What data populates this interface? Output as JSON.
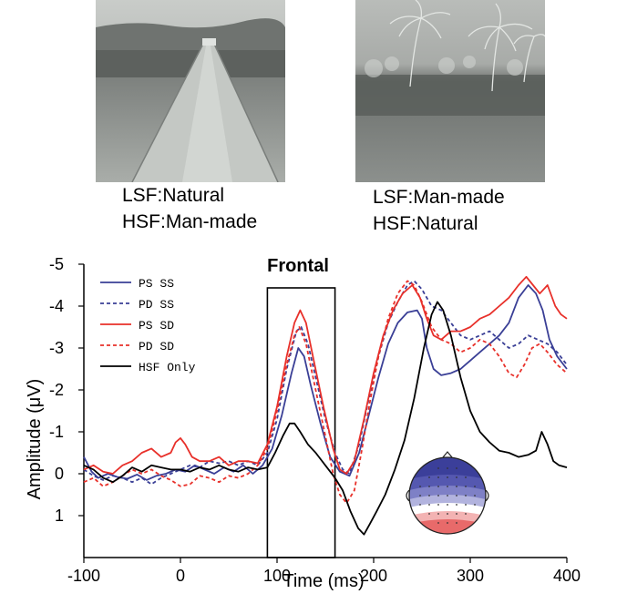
{
  "images": {
    "left": {
      "scene": "road",
      "caption_lines": [
        "LSF:Natural",
        "HSF:Man-made"
      ]
    },
    "right": {
      "scene": "palm-trees",
      "caption_lines": [
        "LSF:Man-made",
        "HSF:Natural"
      ]
    }
  },
  "chart_data": {
    "type": "line",
    "title": "Frontal",
    "xlabel": "Time (ms)",
    "ylabel": "Amplitude (μV)",
    "xlim": [
      -100,
      400
    ],
    "ylim": [
      -5,
      2
    ],
    "y_inverted": true,
    "x_ticks": [
      -100,
      0,
      100,
      200,
      300,
      400
    ],
    "x_tick_labels": [
      "-100",
      "0",
      "100",
      "200",
      "300",
      "400"
    ],
    "y_ticks": [
      -5,
      -4,
      -3,
      -2,
      -1,
      0,
      1
    ],
    "y_tick_labels": [
      "-5",
      "-4",
      "-3",
      "-2",
      "-1",
      "0",
      "1"
    ],
    "grid": false,
    "legend_position": "top-left",
    "highlight_window": {
      "x0": 90,
      "x1": 160
    },
    "inset": "scalp-topography-map",
    "series": [
      {
        "name": "PS SS",
        "color": "#3a3f96",
        "dash": "solid",
        "points": [
          [
            -100,
            -0.4
          ],
          [
            -92,
            -0.05
          ],
          [
            -85,
            0.1
          ],
          [
            -75,
            0.0
          ],
          [
            -65,
            0.08
          ],
          [
            -55,
            0.12
          ],
          [
            -45,
            0.02
          ],
          [
            -35,
            0.15
          ],
          [
            -25,
            0.05
          ],
          [
            -15,
            0.0
          ],
          [
            -5,
            -0.1
          ],
          [
            5,
            -0.05
          ],
          [
            15,
            -0.2
          ],
          [
            25,
            -0.1
          ],
          [
            35,
            0.0
          ],
          [
            45,
            -0.15
          ],
          [
            55,
            -0.05
          ],
          [
            65,
            -0.2
          ],
          [
            75,
            0.0
          ],
          [
            85,
            -0.2
          ],
          [
            95,
            -0.6
          ],
          [
            105,
            -1.4
          ],
          [
            115,
            -2.4
          ],
          [
            122,
            -3.0
          ],
          [
            128,
            -2.8
          ],
          [
            135,
            -2.1
          ],
          [
            145,
            -1.2
          ],
          [
            155,
            -0.4
          ],
          [
            165,
            -0.05
          ],
          [
            175,
            0.05
          ],
          [
            185,
            -0.5
          ],
          [
            195,
            -1.4
          ],
          [
            205,
            -2.3
          ],
          [
            215,
            -3.1
          ],
          [
            225,
            -3.6
          ],
          [
            235,
            -3.85
          ],
          [
            245,
            -3.9
          ],
          [
            250,
            -3.7
          ],
          [
            255,
            -3.0
          ],
          [
            262,
            -2.5
          ],
          [
            270,
            -2.35
          ],
          [
            280,
            -2.4
          ],
          [
            290,
            -2.5
          ],
          [
            300,
            -2.7
          ],
          [
            310,
            -2.9
          ],
          [
            320,
            -3.1
          ],
          [
            330,
            -3.3
          ],
          [
            340,
            -3.6
          ],
          [
            350,
            -4.2
          ],
          [
            360,
            -4.5
          ],
          [
            368,
            -4.3
          ],
          [
            375,
            -3.9
          ],
          [
            382,
            -3.2
          ],
          [
            390,
            -2.8
          ],
          [
            400,
            -2.5
          ]
        ]
      },
      {
        "name": "PD SS",
        "color": "#3a3f96",
        "dash": "dashed",
        "points": [
          [
            -100,
            -0.1
          ],
          [
            -90,
            0.05
          ],
          [
            -80,
            0.15
          ],
          [
            -70,
            0.05
          ],
          [
            -60,
            0.1
          ],
          [
            -50,
            0.2
          ],
          [
            -40,
            0.1
          ],
          [
            -30,
            0.25
          ],
          [
            -20,
            0.1
          ],
          [
            -10,
            0.0
          ],
          [
            0,
            -0.1
          ],
          [
            10,
            -0.2
          ],
          [
            20,
            -0.15
          ],
          [
            30,
            -0.3
          ],
          [
            40,
            -0.25
          ],
          [
            50,
            -0.3
          ],
          [
            60,
            -0.2
          ],
          [
            70,
            -0.3
          ],
          [
            80,
            -0.2
          ],
          [
            90,
            -0.5
          ],
          [
            100,
            -1.3
          ],
          [
            110,
            -2.5
          ],
          [
            120,
            -3.4
          ],
          [
            125,
            -3.5
          ],
          [
            132,
            -3.1
          ],
          [
            140,
            -2.3
          ],
          [
            150,
            -1.3
          ],
          [
            160,
            -0.5
          ],
          [
            168,
            -0.1
          ],
          [
            175,
            0.0
          ],
          [
            185,
            -0.7
          ],
          [
            195,
            -1.8
          ],
          [
            205,
            -2.8
          ],
          [
            215,
            -3.6
          ],
          [
            225,
            -4.1
          ],
          [
            235,
            -4.5
          ],
          [
            242,
            -4.6
          ],
          [
            250,
            -4.4
          ],
          [
            260,
            -4.0
          ],
          [
            270,
            -3.9
          ],
          [
            280,
            -3.6
          ],
          [
            290,
            -3.3
          ],
          [
            300,
            -3.2
          ],
          [
            310,
            -3.3
          ],
          [
            320,
            -3.4
          ],
          [
            330,
            -3.2
          ],
          [
            340,
            -3.0
          ],
          [
            350,
            -3.1
          ],
          [
            360,
            -3.3
          ],
          [
            370,
            -3.2
          ],
          [
            380,
            -3.1
          ],
          [
            390,
            -2.9
          ],
          [
            400,
            -2.6
          ]
        ]
      },
      {
        "name": "PS SD",
        "color": "#e8302a",
        "dash": "solid",
        "points": [
          [
            -100,
            -0.1
          ],
          [
            -90,
            -0.2
          ],
          [
            -80,
            -0.05
          ],
          [
            -70,
            0.0
          ],
          [
            -60,
            -0.2
          ],
          [
            -50,
            -0.3
          ],
          [
            -40,
            -0.5
          ],
          [
            -30,
            -0.6
          ],
          [
            -20,
            -0.4
          ],
          [
            -10,
            -0.5
          ],
          [
            -5,
            -0.75
          ],
          [
            0,
            -0.85
          ],
          [
            5,
            -0.7
          ],
          [
            12,
            -0.4
          ],
          [
            20,
            -0.3
          ],
          [
            30,
            -0.3
          ],
          [
            40,
            -0.4
          ],
          [
            50,
            -0.2
          ],
          [
            60,
            -0.3
          ],
          [
            70,
            -0.3
          ],
          [
            80,
            -0.25
          ],
          [
            90,
            -0.7
          ],
          [
            100,
            -1.6
          ],
          [
            110,
            -2.8
          ],
          [
            118,
            -3.6
          ],
          [
            124,
            -3.9
          ],
          [
            130,
            -3.6
          ],
          [
            138,
            -2.7
          ],
          [
            148,
            -1.6
          ],
          [
            158,
            -0.6
          ],
          [
            165,
            -0.1
          ],
          [
            172,
            0.0
          ],
          [
            180,
            -0.3
          ],
          [
            190,
            -1.3
          ],
          [
            200,
            -2.4
          ],
          [
            210,
            -3.3
          ],
          [
            220,
            -3.9
          ],
          [
            230,
            -4.3
          ],
          [
            240,
            -4.5
          ],
          [
            248,
            -4.2
          ],
          [
            255,
            -3.7
          ],
          [
            262,
            -3.3
          ],
          [
            270,
            -3.2
          ],
          [
            280,
            -3.4
          ],
          [
            290,
            -3.4
          ],
          [
            300,
            -3.5
          ],
          [
            310,
            -3.7
          ],
          [
            320,
            -3.8
          ],
          [
            330,
            -4.0
          ],
          [
            340,
            -4.2
          ],
          [
            350,
            -4.5
          ],
          [
            358,
            -4.7
          ],
          [
            365,
            -4.5
          ],
          [
            372,
            -4.3
          ],
          [
            380,
            -4.5
          ],
          [
            388,
            -4.0
          ],
          [
            394,
            -3.8
          ],
          [
            400,
            -3.7
          ]
        ]
      },
      {
        "name": "PD SD",
        "color": "#e8302a",
        "dash": "dashed",
        "points": [
          [
            -100,
            0.2
          ],
          [
            -90,
            0.1
          ],
          [
            -80,
            0.3
          ],
          [
            -70,
            0.2
          ],
          [
            -60,
            0.05
          ],
          [
            -50,
            -0.1
          ],
          [
            -40,
            0.0
          ],
          [
            -30,
            -0.1
          ],
          [
            -20,
            0.05
          ],
          [
            -10,
            0.15
          ],
          [
            0,
            0.3
          ],
          [
            10,
            0.25
          ],
          [
            20,
            0.05
          ],
          [
            30,
            0.1
          ],
          [
            40,
            0.2
          ],
          [
            50,
            0.05
          ],
          [
            60,
            0.1
          ],
          [
            70,
            0.0
          ],
          [
            80,
            -0.2
          ],
          [
            90,
            -0.6
          ],
          [
            100,
            -1.5
          ],
          [
            110,
            -2.6
          ],
          [
            118,
            -3.3
          ],
          [
            123,
            -3.5
          ],
          [
            130,
            -3.1
          ],
          [
            140,
            -2.0
          ],
          [
            150,
            -0.9
          ],
          [
            158,
            0.0
          ],
          [
            165,
            0.5
          ],
          [
            172,
            0.7
          ],
          [
            180,
            0.4
          ],
          [
            188,
            -0.6
          ],
          [
            196,
            -1.7
          ],
          [
            205,
            -2.8
          ],
          [
            215,
            -3.7
          ],
          [
            225,
            -4.3
          ],
          [
            235,
            -4.6
          ],
          [
            242,
            -4.5
          ],
          [
            250,
            -4.1
          ],
          [
            260,
            -3.5
          ],
          [
            270,
            -3.2
          ],
          [
            280,
            -3.1
          ],
          [
            290,
            -2.9
          ],
          [
            300,
            -3.0
          ],
          [
            310,
            -3.2
          ],
          [
            320,
            -3.1
          ],
          [
            330,
            -2.8
          ],
          [
            340,
            -2.4
          ],
          [
            348,
            -2.3
          ],
          [
            356,
            -2.6
          ],
          [
            364,
            -3.0
          ],
          [
            372,
            -3.1
          ],
          [
            380,
            -2.9
          ],
          [
            390,
            -2.6
          ],
          [
            400,
            -2.4
          ]
        ]
      },
      {
        "name": "HSF Only",
        "color": "#000000",
        "dash": "solid",
        "points": [
          [
            -100,
            -0.2
          ],
          [
            -90,
            -0.1
          ],
          [
            -80,
            0.1
          ],
          [
            -70,
            0.2
          ],
          [
            -60,
            0.05
          ],
          [
            -50,
            -0.15
          ],
          [
            -40,
            -0.05
          ],
          [
            -30,
            -0.2
          ],
          [
            -20,
            -0.15
          ],
          [
            -10,
            -0.1
          ],
          [
            0,
            -0.1
          ],
          [
            10,
            -0.05
          ],
          [
            20,
            -0.15
          ],
          [
            30,
            -0.1
          ],
          [
            40,
            -0.2
          ],
          [
            50,
            -0.1
          ],
          [
            60,
            -0.05
          ],
          [
            70,
            -0.15
          ],
          [
            80,
            -0.1
          ],
          [
            90,
            -0.15
          ],
          [
            98,
            -0.5
          ],
          [
            106,
            -0.9
          ],
          [
            113,
            -1.2
          ],
          [
            118,
            -1.2
          ],
          [
            124,
            -1.0
          ],
          [
            132,
            -0.7
          ],
          [
            140,
            -0.5
          ],
          [
            150,
            -0.2
          ],
          [
            160,
            0.1
          ],
          [
            168,
            0.4
          ],
          [
            176,
            0.9
          ],
          [
            184,
            1.3
          ],
          [
            190,
            1.45
          ],
          [
            196,
            1.2
          ],
          [
            203,
            0.9
          ],
          [
            212,
            0.5
          ],
          [
            222,
            -0.1
          ],
          [
            232,
            -0.8
          ],
          [
            242,
            -1.8
          ],
          [
            252,
            -3.0
          ],
          [
            260,
            -3.8
          ],
          [
            266,
            -4.1
          ],
          [
            272,
            -3.9
          ],
          [
            280,
            -3.3
          ],
          [
            290,
            -2.3
          ],
          [
            300,
            -1.5
          ],
          [
            310,
            -1.0
          ],
          [
            320,
            -0.75
          ],
          [
            330,
            -0.55
          ],
          [
            340,
            -0.5
          ],
          [
            350,
            -0.4
          ],
          [
            360,
            -0.45
          ],
          [
            368,
            -0.55
          ],
          [
            374,
            -1.0
          ],
          [
            380,
            -0.7
          ],
          [
            386,
            -0.3
          ],
          [
            392,
            -0.2
          ],
          [
            400,
            -0.15
          ]
        ]
      }
    ]
  }
}
